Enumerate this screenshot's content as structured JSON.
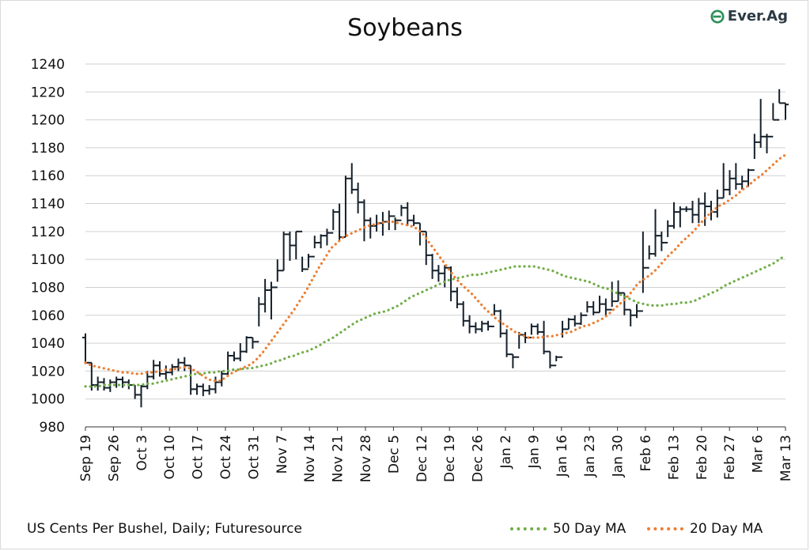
{
  "chart_data": {
    "type": "line",
    "title": "Soybeans",
    "xlabel": "",
    "ylabel": "",
    "ylim": [
      980,
      1240
    ],
    "yticks": [
      980,
      1000,
      1020,
      1040,
      1060,
      1080,
      1100,
      1120,
      1140,
      1160,
      1180,
      1200,
      1220,
      1240
    ],
    "xticks": [
      "Sep 19",
      "Sep 26",
      "Oct 3",
      "Oct 10",
      "Oct 17",
      "Oct 24",
      "Oct 31",
      "Nov 7",
      "Nov 14",
      "Nov 21",
      "Nov 28",
      "Dec 5",
      "Dec 12",
      "Dec 19",
      "Dec 26",
      "Jan 2",
      "Jan 9",
      "Jan 16",
      "Jan 23",
      "Jan 30",
      "Feb 6",
      "Feb 13",
      "Feb 20",
      "Feb 27",
      "Mar 6",
      "Mar 13"
    ],
    "grid": true,
    "legend": "bottom-right",
    "price_bars": {
      "description_fields": [
        "open",
        "high",
        "low",
        "close"
      ],
      "bars": [
        [
          1044,
          1047,
          1025,
          1026
        ],
        [
          1026,
          1026,
          1006,
          1010
        ],
        [
          1010,
          1016,
          1006,
          1012
        ],
        [
          1012,
          1015,
          1006,
          1008
        ],
        [
          1008,
          1014,
          1005,
          1012
        ],
        [
          1012,
          1016,
          1008,
          1014
        ],
        [
          1014,
          1016,
          1008,
          1012
        ],
        [
          1012,
          1014,
          1007,
          1010
        ],
        [
          1010,
          1010,
          1000,
          1003
        ],
        [
          1003,
          1010,
          994,
          1009
        ],
        [
          1009,
          1020,
          1007,
          1016
        ],
        [
          1016,
          1028,
          1014,
          1024
        ],
        [
          1024,
          1027,
          1016,
          1018
        ],
        [
          1018,
          1024,
          1014,
          1019
        ],
        [
          1019,
          1025,
          1017,
          1023
        ],
        [
          1023,
          1029,
          1020,
          1026
        ],
        [
          1026,
          1030,
          1020,
          1024
        ],
        [
          1024,
          1024,
          1003,
          1007
        ],
        [
          1007,
          1011,
          1003,
          1009
        ],
        [
          1009,
          1011,
          1002,
          1006
        ],
        [
          1006,
          1010,
          1003,
          1007
        ],
        [
          1007,
          1016,
          1004,
          1012
        ],
        [
          1012,
          1020,
          1009,
          1018
        ],
        [
          1018,
          1034,
          1016,
          1031
        ],
        [
          1031,
          1034,
          1027,
          1029
        ],
        [
          1029,
          1040,
          1027,
          1034
        ],
        [
          1034,
          1045,
          1033,
          1044
        ],
        [
          1044,
          1044,
          1036,
          1041
        ],
        [
          1041,
          1073,
          1052,
          1068
        ],
        [
          1068,
          1086,
          1062,
          1078
        ],
        [
          1078,
          1084,
          1057,
          1080
        ],
        [
          1080,
          1100,
          1084,
          1092
        ],
        [
          1092,
          1120,
          1092,
          1118
        ],
        [
          1118,
          1120,
          1099,
          1110
        ],
        [
          1110,
          1120,
          1100,
          1120
        ],
        [
          1120,
          1102,
          1091,
          1093
        ],
        [
          1093,
          1104,
          1094,
          1102
        ],
        [
          1102,
          1117,
          1108,
          1112
        ],
        [
          1112,
          1118,
          1108,
          1117
        ],
        [
          1117,
          1122,
          1110,
          1119
        ],
        [
          1119,
          1136,
          1121,
          1134
        ],
        [
          1134,
          1140,
          1113,
          1116
        ],
        [
          1116,
          1160,
          1116,
          1158
        ],
        [
          1158,
          1169,
          1147,
          1150
        ],
        [
          1150,
          1155,
          1133,
          1141
        ],
        [
          1141,
          1143,
          1113,
          1128
        ],
        [
          1128,
          1130,
          1115,
          1124
        ],
        [
          1124,
          1132,
          1120,
          1126
        ],
        [
          1126,
          1134,
          1117,
          1127
        ],
        [
          1127,
          1135,
          1121,
          1131
        ],
        [
          1131,
          1130,
          1121,
          1128
        ],
        [
          1128,
          1139,
          1131,
          1137
        ],
        [
          1137,
          1141,
          1124,
          1128
        ],
        [
          1128,
          1132,
          1124,
          1126
        ],
        [
          1126,
          1126,
          1110,
          1120
        ],
        [
          1120,
          1120,
          1096,
          1103
        ],
        [
          1103,
          1104,
          1086,
          1092
        ],
        [
          1092,
          1096,
          1084,
          1090
        ],
        [
          1090,
          1096,
          1080,
          1094
        ],
        [
          1094,
          1095,
          1070,
          1077
        ],
        [
          1077,
          1080,
          1065,
          1068
        ],
        [
          1068,
          1070,
          1052,
          1056
        ],
        [
          1056,
          1060,
          1047,
          1052
        ],
        [
          1052,
          1055,
          1047,
          1050
        ],
        [
          1050,
          1056,
          1048,
          1054
        ],
        [
          1054,
          1056,
          1049,
          1052
        ],
        [
          1052,
          1068,
          1060,
          1063
        ],
        [
          1063,
          1064,
          1044,
          1047
        ],
        [
          1047,
          1050,
          1030,
          1032
        ],
        [
          1032,
          1032,
          1022,
          1030
        ],
        [
          1030,
          1048,
          1036,
          1046
        ],
        [
          1046,
          1048,
          1040,
          1044
        ],
        [
          1044,
          1054,
          1046,
          1052
        ],
        [
          1052,
          1054,
          1046,
          1048
        ],
        [
          1048,
          1056,
          1032,
          1034
        ],
        [
          1034,
          1034,
          1022,
          1024
        ],
        [
          1024,
          1031,
          1027,
          1030
        ],
        [
          1030,
          1056,
          1044,
          1050
        ],
        [
          1050,
          1058,
          1050,
          1057
        ],
        [
          1057,
          1060,
          1052,
          1054
        ],
        [
          1054,
          1062,
          1053,
          1060
        ],
        [
          1060,
          1070,
          1062,
          1066
        ],
        [
          1066,
          1070,
          1060,
          1062
        ],
        [
          1062,
          1074,
          1062,
          1068
        ],
        [
          1068,
          1072,
          1060,
          1064
        ],
        [
          1064,
          1084,
          1066,
          1070
        ],
        [
          1070,
          1085,
          1070,
          1076
        ],
        [
          1076,
          1076,
          1060,
          1064
        ],
        [
          1064,
          1064,
          1052,
          1060
        ],
        [
          1060,
          1068,
          1058,
          1063
        ],
        [
          1063,
          1120,
          1076,
          1094
        ],
        [
          1094,
          1110,
          1100,
          1104
        ],
        [
          1104,
          1136,
          1102,
          1117
        ],
        [
          1117,
          1120,
          1106,
          1112
        ],
        [
          1112,
          1128,
          1116,
          1124
        ],
        [
          1124,
          1141,
          1122,
          1134
        ],
        [
          1134,
          1138,
          1123,
          1136
        ],
        [
          1136,
          1138,
          1134,
          1136
        ],
        [
          1136,
          1142,
          1126,
          1132
        ],
        [
          1132,
          1144,
          1126,
          1140
        ],
        [
          1140,
          1148,
          1124,
          1138
        ],
        [
          1138,
          1142,
          1128,
          1134
        ],
        [
          1134,
          1150,
          1130,
          1144
        ],
        [
          1144,
          1169,
          1144,
          1150
        ],
        [
          1150,
          1164,
          1146,
          1158
        ],
        [
          1158,
          1169,
          1150,
          1154
        ],
        [
          1154,
          1160,
          1150,
          1156
        ],
        [
          1156,
          1165,
          1152,
          1164
        ],
        [
          1164,
          1190,
          1172,
          1184
        ],
        [
          1184,
          1215,
          1180,
          1188
        ],
        [
          1188,
          1190,
          1176,
          1188
        ],
        [
          1188,
          1212,
          1200,
          1200
        ],
        [
          1200,
          1222,
          1212,
          1212
        ],
        [
          1212,
          1212,
          1200,
          1211
        ]
      ]
    },
    "series": [
      {
        "name": "50 Day MA",
        "color": "#70ad47",
        "values": [
          1009,
          1009,
          1009,
          1010,
          1010,
          1010,
          1010,
          1010,
          1010,
          1010,
          1011,
          1011,
          1012,
          1013,
          1014,
          1015,
          1016,
          1017,
          1018,
          1018,
          1019,
          1019,
          1020,
          1020,
          1021,
          1021,
          1022,
          1022,
          1023,
          1024,
          1025,
          1027,
          1028,
          1030,
          1031,
          1033,
          1034,
          1036,
          1038,
          1041,
          1043,
          1046,
          1049,
          1052,
          1055,
          1057,
          1059,
          1061,
          1062,
          1063,
          1065,
          1067,
          1070,
          1073,
          1075,
          1077,
          1079,
          1081,
          1083,
          1085,
          1086,
          1087,
          1088,
          1089,
          1089,
          1090,
          1091,
          1092,
          1093,
          1094,
          1095,
          1095,
          1095,
          1095,
          1094,
          1093,
          1092,
          1090,
          1088,
          1087,
          1086,
          1085,
          1084,
          1082,
          1080,
          1079,
          1077,
          1075,
          1073,
          1071,
          1069,
          1068,
          1067,
          1067,
          1067,
          1068,
          1068,
          1069,
          1069,
          1070,
          1072,
          1074,
          1076,
          1078,
          1081,
          1083,
          1085,
          1087,
          1089,
          1091,
          1093,
          1095,
          1097,
          1100,
          1103
        ]
      },
      {
        "name": "20 Day MA",
        "color": "#ed7d31",
        "values": [
          1026,
          1024,
          1023,
          1022,
          1021,
          1020,
          1019,
          1019,
          1018,
          1018,
          1019,
          1019,
          1020,
          1021,
          1021,
          1022,
          1023,
          1022,
          1020,
          1017,
          1014,
          1013,
          1013,
          1016,
          1019,
          1021,
          1023,
          1025,
          1029,
          1034,
          1040,
          1046,
          1052,
          1058,
          1064,
          1071,
          1078,
          1086,
          1094,
          1101,
          1108,
          1112,
          1116,
          1118,
          1120,
          1122,
          1124,
          1125,
          1126,
          1127,
          1127,
          1126,
          1125,
          1124,
          1122,
          1118,
          1112,
          1106,
          1100,
          1094,
          1088,
          1083,
          1079,
          1075,
          1070,
          1065,
          1061,
          1057,
          1054,
          1051,
          1048,
          1046,
          1044,
          1044,
          1044,
          1045,
          1045,
          1046,
          1047,
          1048,
          1050,
          1052,
          1053,
          1055,
          1057,
          1060,
          1064,
          1068,
          1072,
          1077,
          1083,
          1086,
          1089,
          1093,
          1098,
          1103,
          1107,
          1112,
          1116,
          1120,
          1125,
          1130,
          1134,
          1138,
          1140,
          1143,
          1146,
          1150,
          1153,
          1157,
          1160,
          1164,
          1168,
          1172,
          1175
        ]
      }
    ],
    "note": "US Cents Per Bushel, Daily; Futuresource"
  },
  "brand": {
    "logo_text": "Ever.Ag",
    "logo_color": "#2d8f5a"
  },
  "colors": {
    "bar": "#14202b",
    "grid": "#d0d0d0",
    "axis": "#333333"
  }
}
